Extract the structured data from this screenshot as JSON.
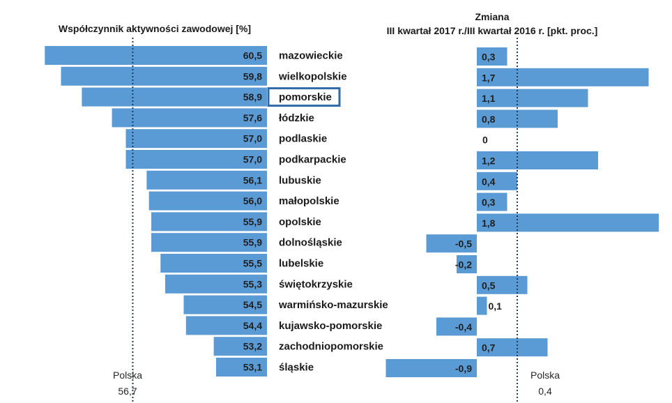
{
  "chart_data": [
    {
      "type": "bar",
      "orientation": "horizontal",
      "title": "Współczynnik aktywności zawodowej [%]",
      "categories": [
        "mazowieckie",
        "wielkopolskie",
        "pomorskie",
        "łódzkie",
        "podlaskie",
        "podkarpackie",
        "lubuskie",
        "małopolskie",
        "opolskie",
        "dolnośląskie",
        "lubelskie",
        "świętokrzyskie",
        "warmińsko-mazurskie",
        "kujawsko-pomorskie",
        "zachodniopomorskie",
        "śląskie"
      ],
      "values": [
        60.5,
        59.8,
        58.9,
        57.6,
        57.0,
        57.0,
        56.1,
        56.0,
        55.9,
        55.9,
        55.5,
        55.3,
        54.5,
        54.4,
        53.2,
        53.1
      ],
      "value_labels": [
        "60,5",
        "59,8",
        "58,9",
        "57,6",
        "57,0",
        "57,0",
        "56,1",
        "56,0",
        "55,9",
        "55,9",
        "55,5",
        "55,3",
        "54,5",
        "54,4",
        "53,2",
        "53,1"
      ],
      "xlim": [
        50.9,
        61.4
      ],
      "reference": {
        "label": "Polska",
        "value": 56.7,
        "value_label": "56,7"
      },
      "highlighted_category": "pomorskie",
      "bar_color": "#5b9bd5"
    },
    {
      "type": "bar",
      "orientation": "horizontal",
      "title_line1": "Zmiana",
      "title_line2": "III kwartał 2017 r./III kwartał 2016 r. [pkt. proc.]",
      "categories": [
        "mazowieckie",
        "wielkopolskie",
        "pomorskie",
        "łódzkie",
        "podlaskie",
        "podkarpackie",
        "lubuskie",
        "małopolskie",
        "opolskie",
        "dolnośląskie",
        "lubelskie",
        "świętokrzyskie",
        "warmińsko-mazurskie",
        "kujawsko-pomorskie",
        "zachodniopomorskie",
        "śląskie"
      ],
      "values": [
        0.3,
        1.7,
        1.1,
        0.8,
        0,
        1.2,
        0.4,
        0.3,
        1.8,
        -0.5,
        -0.2,
        0.5,
        0.1,
        -0.4,
        0.7,
        -0.9
      ],
      "value_labels": [
        "0,3",
        "1,7",
        "1,1",
        "0,8",
        "0",
        "1,2",
        "0,4",
        "0,3",
        "1,8",
        "-0,5",
        "-0,2",
        "0,5",
        "0,1",
        "-0,4",
        "0,7",
        "-0,9"
      ],
      "reference": {
        "label": "Polska",
        "value": 0.4,
        "value_label": "0,4"
      },
      "bar_color": "#5b9bd5"
    }
  ]
}
